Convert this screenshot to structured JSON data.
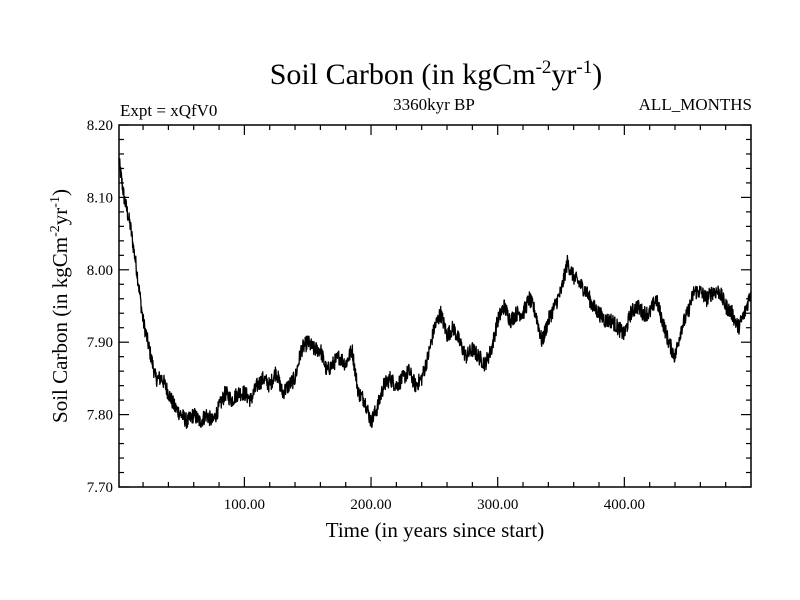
{
  "chart_data": {
    "type": "line",
    "title_main": "Soil Carbon (in kgCm",
    "title_sup1": "-2",
    "title_mid": "yr",
    "title_sup2": "-1",
    "title_end": ")",
    "subtitle_left": "Expt = xQfV0",
    "subtitle_center": "3360kyr BP",
    "subtitle_right": "ALL_MONTHS",
    "xlabel": "Time (in years since start)",
    "ylabel_main": "Soil Carbon (in kgCm",
    "ylabel_sup1": "-2",
    "ylabel_mid": "yr",
    "ylabel_sup2": "-1",
    "ylabel_end": ")",
    "xlim": [
      1,
      500
    ],
    "ylim": [
      7.7,
      8.2
    ],
    "x_ticks": [
      100,
      200,
      300,
      400
    ],
    "x_tick_labels": [
      "100.00",
      "200.00",
      "300.00",
      "400.00"
    ],
    "y_ticks": [
      7.7,
      7.8,
      7.9,
      8.0,
      8.1,
      8.2
    ],
    "y_tick_labels": [
      "7.70",
      "7.80",
      "7.90",
      "8.00",
      "8.10",
      "8.20"
    ],
    "series": [
      {
        "name": "Soil Carbon",
        "color": "#000000",
        "x": [
          1,
          5,
          10,
          15,
          20,
          25,
          30,
          35,
          40,
          45,
          50,
          55,
          60,
          65,
          70,
          75,
          80,
          85,
          90,
          95,
          100,
          105,
          110,
          115,
          120,
          125,
          130,
          135,
          140,
          145,
          150,
          155,
          160,
          165,
          170,
          175,
          180,
          185,
          190,
          195,
          200,
          205,
          210,
          215,
          220,
          225,
          230,
          235,
          240,
          245,
          250,
          255,
          260,
          265,
          270,
          275,
          280,
          285,
          290,
          295,
          300,
          305,
          310,
          315,
          320,
          325,
          330,
          335,
          340,
          345,
          350,
          355,
          360,
          365,
          370,
          375,
          380,
          385,
          390,
          395,
          400,
          405,
          410,
          415,
          420,
          425,
          430,
          435,
          440,
          445,
          450,
          455,
          460,
          465,
          470,
          475,
          480,
          485,
          490,
          495,
          500
        ],
        "values": [
          8.15,
          8.1,
          8.06,
          8.0,
          7.93,
          7.89,
          7.85,
          7.85,
          7.83,
          7.81,
          7.8,
          7.79,
          7.8,
          7.79,
          7.8,
          7.79,
          7.81,
          7.83,
          7.82,
          7.83,
          7.83,
          7.82,
          7.84,
          7.85,
          7.84,
          7.86,
          7.83,
          7.84,
          7.85,
          7.89,
          7.9,
          7.89,
          7.89,
          7.86,
          7.87,
          7.88,
          7.87,
          7.89,
          7.83,
          7.82,
          7.79,
          7.81,
          7.84,
          7.85,
          7.84,
          7.85,
          7.86,
          7.84,
          7.85,
          7.88,
          7.92,
          7.94,
          7.91,
          7.92,
          7.9,
          7.88,
          7.89,
          7.88,
          7.87,
          7.89,
          7.93,
          7.95,
          7.93,
          7.94,
          7.94,
          7.96,
          7.94,
          7.9,
          7.93,
          7.95,
          7.97,
          8.01,
          7.99,
          7.98,
          7.97,
          7.95,
          7.94,
          7.93,
          7.93,
          7.92,
          7.91,
          7.94,
          7.95,
          7.94,
          7.94,
          7.96,
          7.93,
          7.9,
          7.88,
          7.92,
          7.94,
          7.97,
          7.97,
          7.96,
          7.97,
          7.97,
          7.95,
          7.94,
          7.92,
          7.94,
          7.97
        ]
      }
    ]
  }
}
